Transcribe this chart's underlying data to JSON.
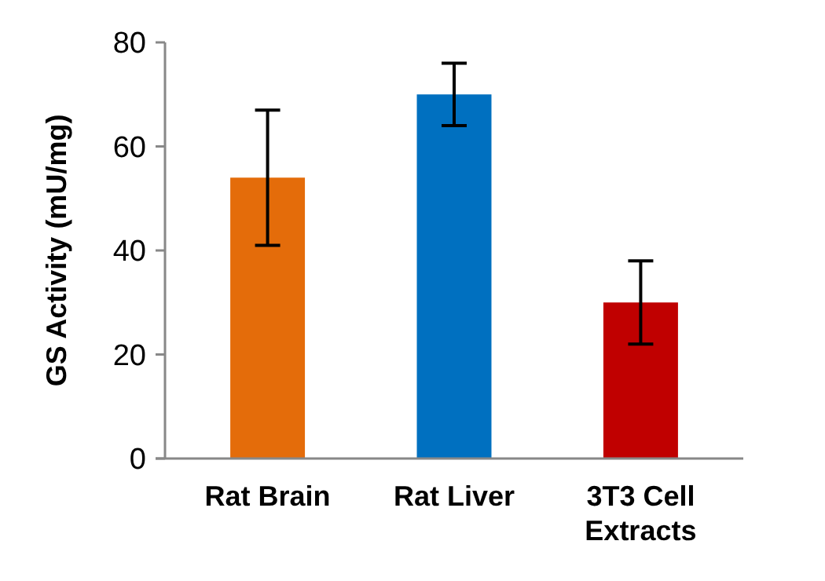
{
  "chart_data": {
    "type": "bar",
    "ylabel": "GS Activity (mU/mg)",
    "categories": [
      "Rat Brain",
      "Rat Liver",
      "3T3 Cell Extracts"
    ],
    "values": [
      54,
      70,
      30
    ],
    "colors": [
      "#e46c0a",
      "#0070c0",
      "#c00000"
    ],
    "errors": [
      13,
      6,
      8
    ],
    "ylim": [
      0,
      80
    ],
    "yticks": [
      0,
      20,
      40,
      60,
      80
    ],
    "grid": false
  }
}
